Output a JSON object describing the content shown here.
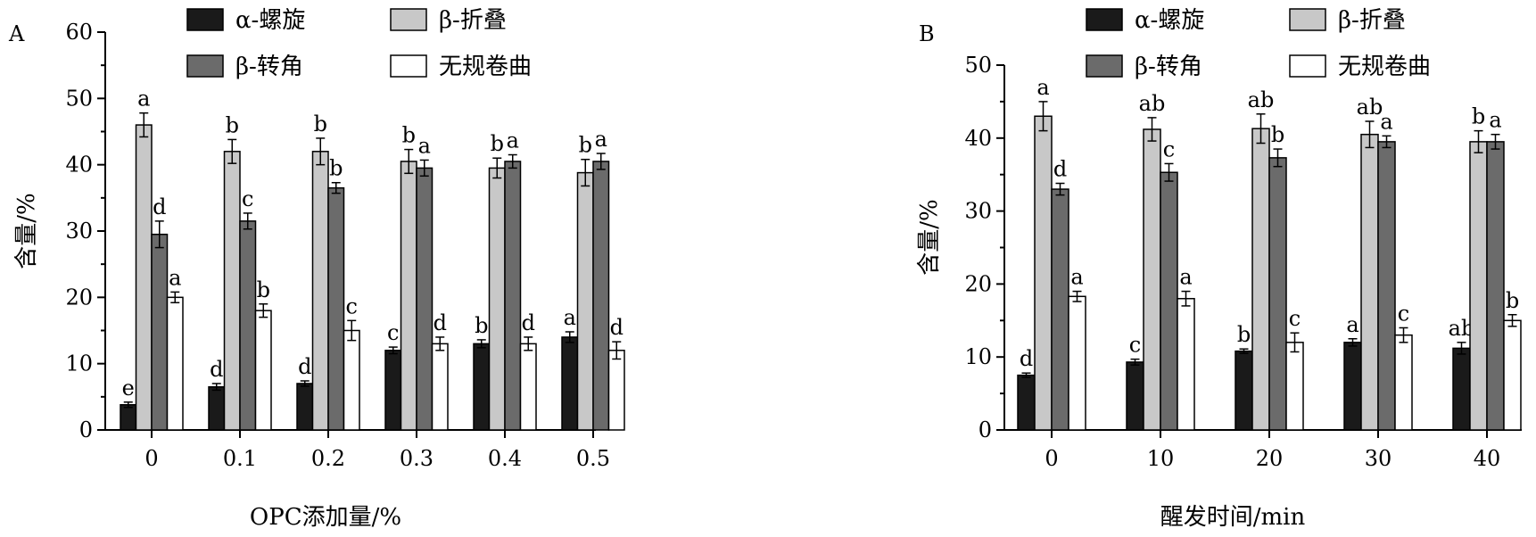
{
  "chart_data": [
    {
      "type": "bar",
      "panel_label": "A",
      "categories": [
        "0",
        "0.1",
        "0.2",
        "0.3",
        "0.4",
        "0.5"
      ],
      "xlabel": "OPC添加量/%",
      "ylabel": "含量/%",
      "ylim": [
        0,
        60
      ],
      "yticks": [
        0,
        10,
        20,
        30,
        40,
        50,
        60
      ],
      "grid": false,
      "legend_position": "top",
      "series": [
        {
          "name": "α-螺旋",
          "color": "#1a1a1a",
          "values": [
            3.8,
            6.5,
            7.0,
            12.0,
            13.0,
            14.0
          ],
          "errors": [
            0.4,
            0.5,
            0.4,
            0.5,
            0.6,
            0.8
          ],
          "letters": [
            "e",
            "d",
            "d",
            "c",
            "b",
            "a"
          ]
        },
        {
          "name": "β-折叠",
          "color": "#c8c8c8",
          "values": [
            46.0,
            42.0,
            42.0,
            40.5,
            39.5,
            38.8
          ],
          "errors": [
            1.8,
            1.8,
            2.0,
            1.8,
            1.5,
            2.0
          ],
          "letters": [
            "a",
            "b",
            "b",
            "b",
            "b",
            "b"
          ]
        },
        {
          "name": "β-转角",
          "color": "#6b6b6b",
          "values": [
            29.5,
            31.5,
            36.5,
            39.5,
            40.5,
            40.5
          ],
          "errors": [
            2.0,
            1.2,
            0.8,
            1.2,
            1.0,
            1.2
          ],
          "letters": [
            "d",
            "c",
            "b",
            "a",
            "a",
            "a"
          ]
        },
        {
          "name": "无规卷曲",
          "color": "#ffffff",
          "values": [
            20.0,
            18.0,
            15.0,
            13.0,
            13.0,
            12.0
          ],
          "errors": [
            0.8,
            1.0,
            1.5,
            1.0,
            1.0,
            1.3
          ],
          "letters": [
            "a",
            "b",
            "c",
            "d",
            "d",
            "d"
          ]
        }
      ]
    },
    {
      "type": "bar",
      "panel_label": "B",
      "categories": [
        "0",
        "10",
        "20",
        "30",
        "40"
      ],
      "xlabel": "醒发时间/min",
      "ylabel": "含量/%",
      "ylim": [
        0,
        50
      ],
      "yticks": [
        0,
        10,
        20,
        30,
        40,
        50
      ],
      "grid": false,
      "legend_position": "top",
      "series": [
        {
          "name": "α-螺旋",
          "color": "#1a1a1a",
          "values": [
            7.5,
            9.3,
            10.8,
            12.0,
            11.2
          ],
          "errors": [
            0.3,
            0.4,
            0.3,
            0.5,
            0.8
          ],
          "letters": [
            "d",
            "c",
            "b",
            "a",
            "ab"
          ]
        },
        {
          "name": "β-折叠",
          "color": "#c8c8c8",
          "values": [
            43.0,
            41.2,
            41.3,
            40.5,
            39.5
          ],
          "errors": [
            2.0,
            1.6,
            2.0,
            1.8,
            1.5
          ],
          "letters": [
            "a",
            "ab",
            "ab",
            "ab",
            "b"
          ]
        },
        {
          "name": "β-转角",
          "color": "#6b6b6b",
          "values": [
            33.0,
            35.3,
            37.3,
            39.5,
            39.5
          ],
          "errors": [
            0.8,
            1.2,
            1.2,
            0.8,
            1.0
          ],
          "letters": [
            "d",
            "c",
            "b",
            "a",
            "a"
          ]
        },
        {
          "name": "无规卷曲",
          "color": "#ffffff",
          "values": [
            18.3,
            18.0,
            12.0,
            13.0,
            15.0
          ],
          "errors": [
            0.7,
            1.0,
            1.3,
            1.0,
            0.8
          ],
          "letters": [
            "a",
            "a",
            "c",
            "c",
            "b"
          ]
        }
      ]
    }
  ]
}
